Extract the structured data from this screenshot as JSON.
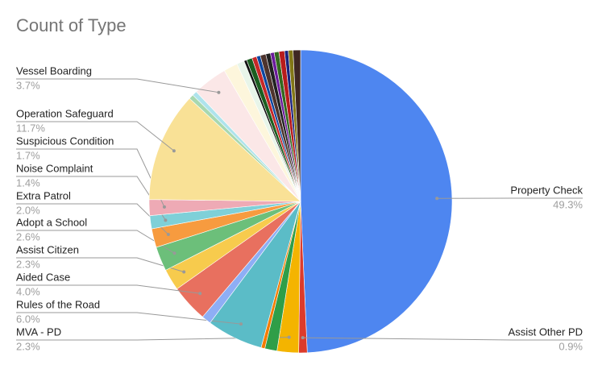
{
  "chart_data": {
    "type": "pie",
    "title": "Count of Type",
    "categories": [
      "Property Check",
      "Assist Other PD",
      "MVA - PD",
      null,
      null,
      "Rules of the Road",
      null,
      "Aided Case",
      "Assist Citizen",
      "Adopt a School",
      "Extra Patrol",
      "Noise Complaint",
      "Suspicious Condition",
      "Operation Safeguard",
      null,
      null,
      "Vessel Boarding",
      null,
      null,
      null,
      null,
      null,
      null,
      null,
      null,
      null,
      null,
      null,
      null,
      null,
      null
    ],
    "values": [
      49.3,
      0.9,
      2.3,
      1.3,
      0.4,
      6.0,
      1.0,
      4.0,
      2.3,
      2.6,
      2.0,
      1.4,
      1.7,
      11.7,
      0.5,
      0.5,
      3.7,
      1.5,
      0.8,
      0.3,
      0.6,
      0.5,
      0.4,
      0.6,
      0.5,
      0.4,
      0.5,
      0.6,
      0.4,
      0.5,
      0.8
    ],
    "value_labels": [
      "49.3%",
      "0.9%",
      "2.3%",
      null,
      null,
      "6.0%",
      null,
      "4.0%",
      "2.3%",
      "2.6%",
      "2.0%",
      "1.4%",
      "1.7%",
      "11.7%",
      null,
      null,
      "3.7%",
      null,
      null,
      null,
      null,
      null,
      null,
      null,
      null,
      null,
      null,
      null,
      null,
      null,
      null
    ],
    "colors": [
      "#4e86f0",
      "#dc3b2b",
      "#f4b400",
      "#2f9e48",
      "#f57c00",
      "#5bbcc7",
      "#8eaef5",
      "#e8705f",
      "#f7cb4d",
      "#6cbf7a",
      "#f79b3f",
      "#7fd0d8",
      "#eeaab5",
      "#f9e196",
      "#a8d8b0",
      "#aee3ec",
      "#fbe7e7",
      "#fdf6dc",
      "#e8f5e9",
      "#111111",
      "#1b5e20",
      "#c62828",
      "#0d47a1",
      "#4e342e",
      "#212121",
      "#6a1b9a",
      "#33691e",
      "#b71c1c",
      "#1a237e",
      "#827717",
      "#3e2723"
    ]
  }
}
